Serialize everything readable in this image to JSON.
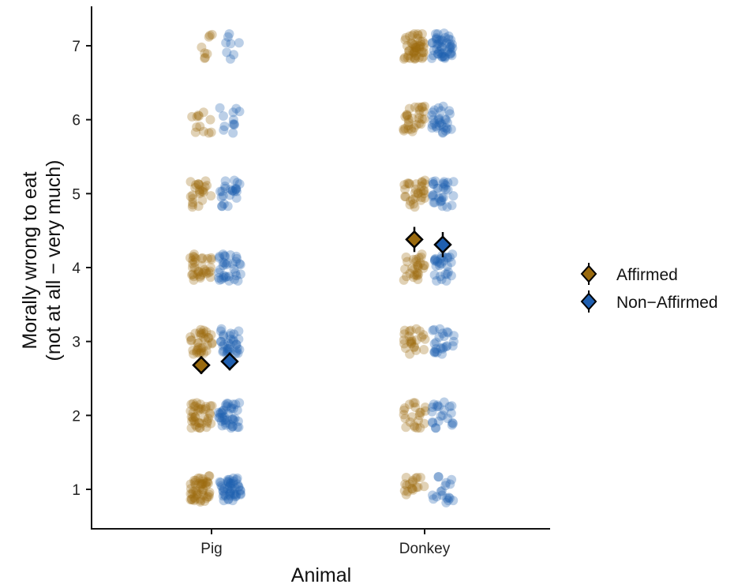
{
  "chart_data": {
    "type": "scatter",
    "title": "",
    "xlabel": "Animal",
    "ylabel_line1": "Morally wrong to eat",
    "ylabel_line2": "(not at all − very much)",
    "categories": [
      "Pig",
      "Donkey"
    ],
    "y_ticks": [
      "1",
      "2",
      "3",
      "4",
      "5",
      "6",
      "7"
    ],
    "ylim": [
      0.55,
      7.55
    ],
    "grid": false,
    "legend_position": "right",
    "colors": {
      "Affirmed": "#9a6a0e",
      "Non-Affirmed": "#1f5fb0"
    },
    "series": [
      {
        "name": "Affirmed",
        "color": "#9a6a0e",
        "means": {
          "Pig": 2.68,
          "Donkey": 4.38
        },
        "error": {
          "Pig": 0.12,
          "Donkey": 0.17
        },
        "points_summary": {
          "Pig": "dense jittered responses from 0.8 to 5.8, heaviest near 1, with a few near 6.5-7.2",
          "Donkey": "jittered responses spread from 0.8 to 7.2, heavy near 7 and across 2-6"
        }
      },
      {
        "name": "Non-Affirmed",
        "color": "#1f5fb0",
        "means": {
          "Pig": 2.73,
          "Donkey": 4.31
        },
        "error": {
          "Pig": 0.12,
          "Donkey": 0.17
        },
        "points_summary": {
          "Pig": "dense jittered responses from 0.8 to 5.9, heaviest near 1, with a few near 6.6-7.2",
          "Donkey": "jittered responses spread from 0.8 to 7.2, heavy near 7 and across 1-6"
        }
      }
    ]
  },
  "legend": {
    "items": [
      {
        "label": "Affirmed",
        "color": "#9a6a0e"
      },
      {
        "label": "Non−Affirmed",
        "color": "#1f5fb0"
      }
    ]
  }
}
